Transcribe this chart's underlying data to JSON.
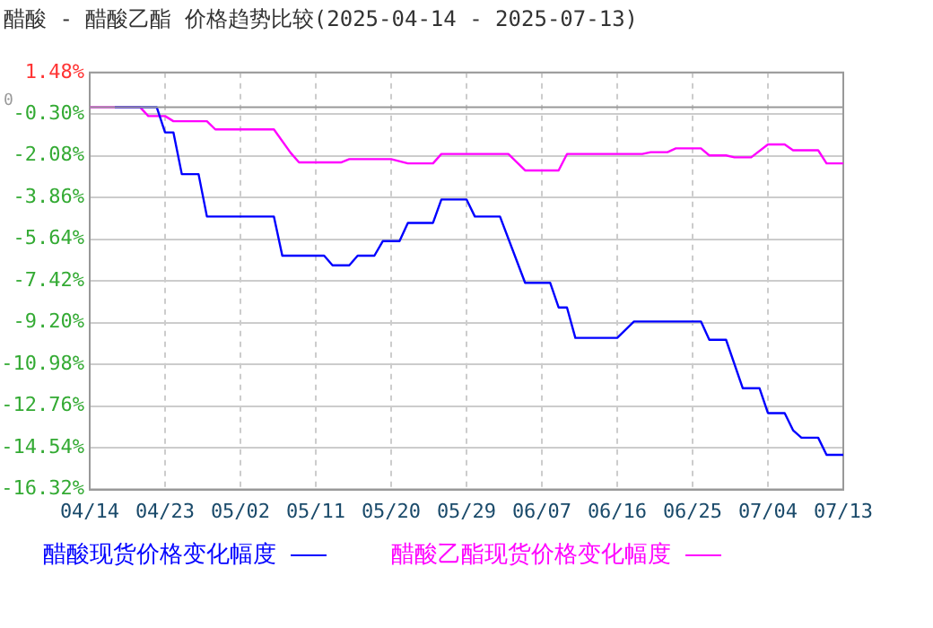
{
  "chart_data": {
    "type": "line",
    "title": "醋酸 - 醋酸乙酯 价格趋势比较(2025-04-14 - 2025-07-13)",
    "xlim": [
      "2025-04-14",
      "2025-07-13"
    ],
    "xticks": [
      {
        "value": "2025-04-14",
        "label": "04/14"
      },
      {
        "value": "2025-04-23",
        "label": "04/23"
      },
      {
        "value": "2025-05-02",
        "label": "05/02"
      },
      {
        "value": "2025-05-11",
        "label": "05/11"
      },
      {
        "value": "2025-05-20",
        "label": "05/20"
      },
      {
        "value": "2025-05-29",
        "label": "05/29"
      },
      {
        "value": "2025-06-07",
        "label": "06/07"
      },
      {
        "value": "2025-06-16",
        "label": "06/16"
      },
      {
        "value": "2025-06-25",
        "label": "06/25"
      },
      {
        "value": "2025-07-04",
        "label": "07/04"
      },
      {
        "value": "2025-07-13",
        "label": "07/13"
      }
    ],
    "ylim": [
      -16.32,
      1.48
    ],
    "yticks": [
      {
        "value": 1.48,
        "label": "1.48%"
      },
      {
        "value": -0.3,
        "label": "-0.30%"
      },
      {
        "value": -2.08,
        "label": "-2.08%"
      },
      {
        "value": -3.86,
        "label": "-3.86%"
      },
      {
        "value": -5.64,
        "label": "-5.64%"
      },
      {
        "value": -7.42,
        "label": "-7.42%"
      },
      {
        "value": -9.2,
        "label": "-9.20%"
      },
      {
        "value": -10.98,
        "label": "-10.98%"
      },
      {
        "value": -12.76,
        "label": "-12.76%"
      },
      {
        "value": -14.54,
        "label": "-14.54%"
      },
      {
        "value": -16.32,
        "label": "-16.32%"
      }
    ],
    "grid": true,
    "legend": "bottom",
    "marker": "none",
    "line_style": "solid",
    "ref_lines": [
      {
        "axis": "y",
        "value": 0,
        "label": "0",
        "color": "#999999"
      }
    ],
    "series": [
      {
        "name": "醋酸现货价格变化幅度",
        "color": "#0000ff",
        "x": [
          "2025-04-17",
          "2025-04-22",
          "2025-04-23",
          "2025-04-24",
          "2025-04-25",
          "2025-04-27",
          "2025-04-28",
          "2025-05-06",
          "2025-05-07",
          "2025-05-12",
          "2025-05-13",
          "2025-05-15",
          "2025-05-16",
          "2025-05-18",
          "2025-05-19",
          "2025-05-21",
          "2025-05-22",
          "2025-05-25",
          "2025-05-26",
          "2025-05-29",
          "2025-05-30",
          "2025-06-02",
          "2025-06-05",
          "2025-06-08",
          "2025-06-09",
          "2025-06-10",
          "2025-06-11",
          "2025-06-16",
          "2025-06-18",
          "2025-06-26",
          "2025-06-27",
          "2025-06-29",
          "2025-07-01",
          "2025-07-03",
          "2025-07-04",
          "2025-07-06",
          "2025-07-07",
          "2025-07-08",
          "2025-07-10",
          "2025-07-11",
          "2025-07-13"
        ],
        "values": [
          0,
          0,
          -1.08,
          -1.08,
          -2.86,
          -2.86,
          -4.67,
          -4.67,
          -6.34,
          -6.34,
          -6.75,
          -6.75,
          -6.34,
          -6.34,
          -5.72,
          -5.72,
          -4.94,
          -4.94,
          -3.94,
          -3.94,
          -4.67,
          -4.67,
          -7.5,
          -7.5,
          -8.55,
          -8.55,
          -9.85,
          -9.85,
          -9.15,
          -9.15,
          -9.93,
          -9.93,
          -12.0,
          -12.0,
          -13.06,
          -13.06,
          -13.79,
          -14.11,
          -14.11,
          -14.84,
          -14.84
        ]
      },
      {
        "name": "醋酸乙酯现货价格变化幅度",
        "color": "#ff00ff",
        "x": [
          "2025-04-14",
          "2025-04-20",
          "2025-04-21",
          "2025-04-23",
          "2025-04-24",
          "2025-04-28",
          "2025-04-29",
          "2025-05-06",
          "2025-05-08",
          "2025-05-09",
          "2025-05-14",
          "2025-05-15",
          "2025-05-20",
          "2025-05-22",
          "2025-05-25",
          "2025-05-26",
          "2025-06-03",
          "2025-06-05",
          "2025-06-09",
          "2025-06-10",
          "2025-06-19",
          "2025-06-20",
          "2025-06-22",
          "2025-06-23",
          "2025-06-26",
          "2025-06-27",
          "2025-06-29",
          "2025-06-30",
          "2025-07-02",
          "2025-07-04",
          "2025-07-06",
          "2025-07-07",
          "2025-07-10",
          "2025-07-11",
          "2025-07-13"
        ],
        "values": [
          0,
          0,
          -0.38,
          -0.38,
          -0.6,
          -0.6,
          -0.95,
          -0.95,
          -1.95,
          -2.36,
          -2.36,
          -2.22,
          -2.22,
          -2.4,
          -2.4,
          -2.0,
          -2.0,
          -2.7,
          -2.7,
          -2.0,
          -2.0,
          -1.92,
          -1.92,
          -1.76,
          -1.76,
          -2.06,
          -2.06,
          -2.14,
          -2.14,
          -1.59,
          -1.59,
          -1.84,
          -1.84,
          -2.4,
          -2.4
        ]
      }
    ]
  }
}
